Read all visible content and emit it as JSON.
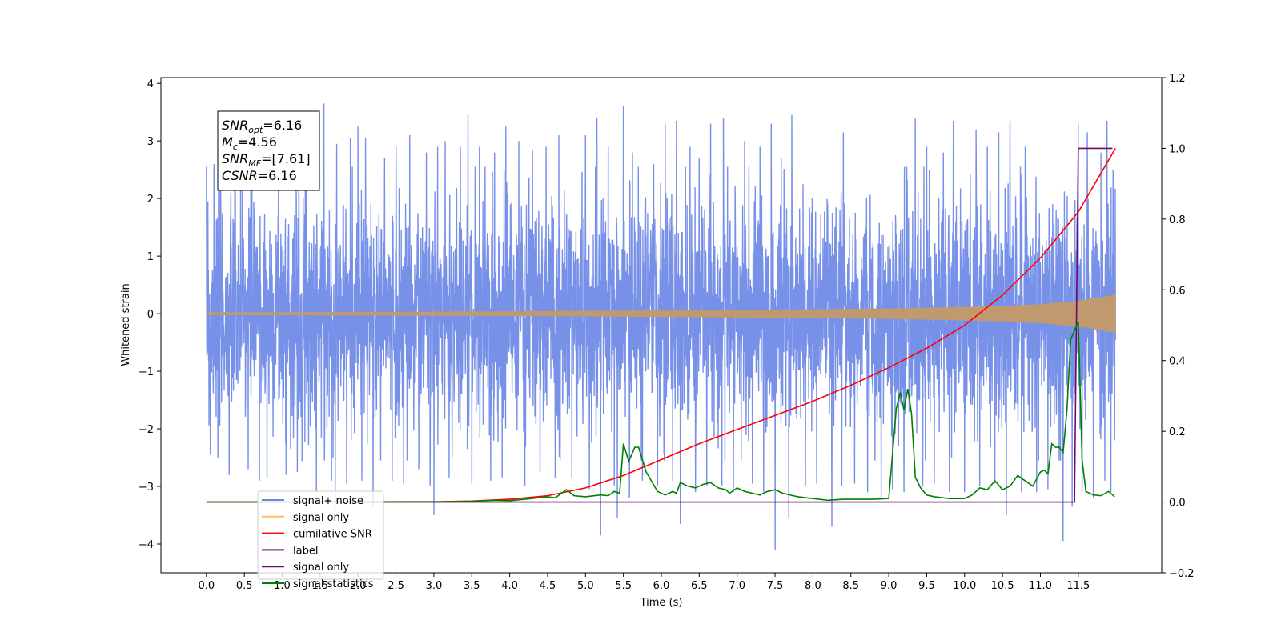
{
  "chart_data": {
    "type": "line",
    "xlabel": "Time (s)",
    "ylabel": "Whitened strain",
    "xlim": [
      -0.6,
      12.6
    ],
    "ylim": [
      -4.5,
      4.1
    ],
    "y2lim": [
      -0.2,
      1.2
    ],
    "x_ticks": [
      "0.0",
      "0.5",
      "1.0",
      "1.5",
      "2.0",
      "2.5",
      "3.0",
      "3.5",
      "4.0",
      "4.5",
      "5.0",
      "5.5",
      "6.0",
      "6.5",
      "7.0",
      "7.5",
      "8.0",
      "8.5",
      "9.0",
      "9.5",
      "10.0",
      "10.5",
      "11.0",
      "11.5"
    ],
    "y_ticks": [
      "4",
      "3",
      "2",
      "1",
      "0",
      "−1",
      "−2",
      "−3",
      "−4"
    ],
    "y2_ticks": [
      "1.2",
      "1.0",
      "0.8",
      "0.6",
      "0.4",
      "0.2",
      "0.0",
      "−0.2"
    ],
    "legend_location": "lower-left",
    "series": [
      {
        "name": "signal+ noise",
        "axis": "left",
        "color": "#6b87e6",
        "noise_sigma": 0.95,
        "x_range": [
          0.0,
          11.99
        ],
        "spikes": [
          [
            0.02,
            1.95
          ],
          [
            0.1,
            2.6
          ],
          [
            0.18,
            2.9
          ],
          [
            0.38,
            3.05
          ],
          [
            0.45,
            2.7
          ],
          [
            0.6,
            2.9
          ],
          [
            0.7,
            3.2
          ],
          [
            0.95,
            3.35
          ],
          [
            1.05,
            3.3
          ],
          [
            1.22,
            2.95
          ],
          [
            1.32,
            3.25
          ],
          [
            1.55,
            3.65
          ],
          [
            1.72,
            2.95
          ],
          [
            1.9,
            3.05
          ],
          [
            2.0,
            3.25
          ],
          [
            2.1,
            3.05
          ],
          [
            2.35,
            2.7
          ],
          [
            2.5,
            2.9
          ],
          [
            2.68,
            3.1
          ],
          [
            2.9,
            2.8
          ],
          [
            3.05,
            2.9
          ],
          [
            3.15,
            3.0
          ],
          [
            3.35,
            2.9
          ],
          [
            3.45,
            3.45
          ],
          [
            3.6,
            2.9
          ],
          [
            3.8,
            2.8
          ],
          [
            3.95,
            3.25
          ],
          [
            4.12,
            3.0
          ],
          [
            4.3,
            2.85
          ],
          [
            4.48,
            2.9
          ],
          [
            4.65,
            3.1
          ],
          [
            4.82,
            2.9
          ],
          [
            5.0,
            3.1
          ],
          [
            5.15,
            3.4
          ],
          [
            5.3,
            2.9
          ],
          [
            5.5,
            3.6
          ],
          [
            5.62,
            2.8
          ],
          [
            5.75,
            3.7
          ],
          [
            5.9,
            2.6
          ],
          [
            6.05,
            3.3
          ],
          [
            6.2,
            3.35
          ],
          [
            6.38,
            2.9
          ],
          [
            6.5,
            2.7
          ],
          [
            6.65,
            3.3
          ],
          [
            6.82,
            3.4
          ],
          [
            6.95,
            2.75
          ],
          [
            7.1,
            3.0
          ],
          [
            7.3,
            2.9
          ],
          [
            7.45,
            3.3
          ],
          [
            7.58,
            2.7
          ],
          [
            7.72,
            3.45
          ],
          [
            7.9,
            2.8
          ],
          [
            8.05,
            3.45
          ],
          [
            8.25,
            2.9
          ],
          [
            8.4,
            3.15
          ],
          [
            8.55,
            2.8
          ],
          [
            8.72,
            3.15
          ],
          [
            8.9,
            2.8
          ],
          [
            9.05,
            3.4
          ],
          [
            9.2,
            2.8
          ],
          [
            9.35,
            3.4
          ],
          [
            9.5,
            2.9
          ],
          [
            9.6,
            3.3
          ],
          [
            9.72,
            2.8
          ],
          [
            9.85,
            3.35
          ],
          [
            10.0,
            2.8
          ],
          [
            10.15,
            3.2
          ],
          [
            10.3,
            2.9
          ],
          [
            10.45,
            3.15
          ],
          [
            10.6,
            3.35
          ],
          [
            10.8,
            2.9
          ],
          [
            10.95,
            3.25
          ],
          [
            11.1,
            3.2
          ],
          [
            11.3,
            2.85
          ],
          [
            11.5,
            3.3
          ],
          [
            11.62,
            3.15
          ],
          [
            11.8,
            2.8
          ],
          [
            11.88,
            3.35
          ],
          [
            11.96,
            2.5
          ],
          [
            0.05,
            -2.45
          ],
          [
            0.15,
            -2.5
          ],
          [
            0.3,
            -2.8
          ],
          [
            0.55,
            -2.7
          ],
          [
            0.7,
            -2.9
          ],
          [
            0.8,
            -2.85
          ],
          [
            1.05,
            -2.8
          ],
          [
            1.2,
            -2.75
          ],
          [
            1.45,
            -3.1
          ],
          [
            1.65,
            -2.9
          ],
          [
            1.7,
            -3.4
          ],
          [
            1.85,
            -2.95
          ],
          [
            2.05,
            -2.9
          ],
          [
            2.2,
            -3.35
          ],
          [
            2.45,
            -2.9
          ],
          [
            2.6,
            -2.95
          ],
          [
            2.8,
            -2.7
          ],
          [
            2.95,
            -3.0
          ],
          [
            3.0,
            -3.5
          ],
          [
            3.2,
            -2.85
          ],
          [
            3.5,
            -2.95
          ],
          [
            3.75,
            -2.9
          ],
          [
            3.9,
            -2.85
          ],
          [
            4.2,
            -3.0
          ],
          [
            4.4,
            -2.75
          ],
          [
            4.6,
            -2.85
          ],
          [
            4.82,
            -2.85
          ],
          [
            5.05,
            -3.05
          ],
          [
            5.2,
            -3.85
          ],
          [
            5.38,
            -3.0
          ],
          [
            5.42,
            -3.55
          ],
          [
            5.58,
            -3.2
          ],
          [
            5.75,
            -2.9
          ],
          [
            5.95,
            -3.0
          ],
          [
            6.15,
            -2.9
          ],
          [
            6.25,
            -3.65
          ],
          [
            6.45,
            -3.1
          ],
          [
            6.6,
            -3.0
          ],
          [
            6.8,
            -3.0
          ],
          [
            6.95,
            -3.1
          ],
          [
            7.2,
            -2.95
          ],
          [
            7.35,
            -3.1
          ],
          [
            7.5,
            -4.1
          ],
          [
            7.68,
            -3.55
          ],
          [
            7.9,
            -3.0
          ],
          [
            8.05,
            -2.95
          ],
          [
            8.25,
            -3.7
          ],
          [
            8.38,
            -3.0
          ],
          [
            8.55,
            -2.95
          ],
          [
            8.72,
            -3.1
          ],
          [
            8.9,
            -3.2
          ],
          [
            9.05,
            -3.05
          ],
          [
            9.2,
            -3.1
          ],
          [
            9.45,
            -3.0
          ],
          [
            9.6,
            -2.95
          ],
          [
            9.8,
            -3.1
          ],
          [
            10.0,
            -3.1
          ],
          [
            10.2,
            -3.0
          ],
          [
            10.4,
            -2.95
          ],
          [
            10.55,
            -3.5
          ],
          [
            10.75,
            -3.1
          ],
          [
            10.95,
            -3.1
          ],
          [
            11.1,
            -3.05
          ],
          [
            11.3,
            -3.95
          ],
          [
            11.42,
            -3.35
          ],
          [
            11.55,
            -3.1
          ],
          [
            11.7,
            -3.2
          ],
          [
            11.85,
            -2.9
          ],
          [
            11.93,
            -3.1
          ],
          [
            11.98,
            -2.2
          ]
        ]
      },
      {
        "name": "signal only",
        "axis": "left",
        "color": "#c09a6e",
        "envelope": [
          [
            0.0,
            0.02
          ],
          [
            2.0,
            0.025
          ],
          [
            4.0,
            0.035
          ],
          [
            6.0,
            0.05
          ],
          [
            8.0,
            0.07
          ],
          [
            9.0,
            0.085
          ],
          [
            10.0,
            0.11
          ],
          [
            10.5,
            0.13
          ],
          [
            11.0,
            0.16
          ],
          [
            11.5,
            0.22
          ],
          [
            11.8,
            0.28
          ],
          [
            11.99,
            0.33
          ]
        ],
        "x_range": [
          0.0,
          11.99
        ]
      },
      {
        "name": "cumilative SNR",
        "axis": "right",
        "color": "#ff0000",
        "x": [
          0.0,
          3.0,
          3.5,
          4.0,
          4.5,
          5.0,
          5.5,
          6.0,
          6.5,
          7.0,
          7.5,
          8.0,
          8.5,
          9.0,
          9.5,
          10.0,
          10.5,
          11.0,
          11.5,
          11.99
        ],
        "values": [
          0.0,
          0.001,
          0.003,
          0.008,
          0.018,
          0.04,
          0.075,
          0.12,
          0.165,
          0.205,
          0.245,
          0.285,
          0.33,
          0.38,
          0.435,
          0.5,
          0.585,
          0.69,
          0.82,
          1.0
        ]
      },
      {
        "name": "label",
        "axis": "right",
        "color": "#6b0a6b",
        "x": [
          0.0,
          11.25,
          11.45,
          11.5,
          11.95
        ],
        "values": [
          0.0,
          0.0,
          0.0,
          1.0,
          1.0
        ]
      },
      {
        "name": "signal statistics",
        "axis": "right",
        "color": "#008000",
        "x": [
          0.0,
          0.5,
          1.0,
          1.5,
          2.0,
          2.5,
          3.0,
          3.5,
          3.8,
          4.0,
          4.2,
          4.5,
          4.6,
          4.75,
          4.85,
          5.0,
          5.2,
          5.3,
          5.38,
          5.45,
          5.5,
          5.57,
          5.65,
          5.7,
          5.8,
          5.95,
          6.05,
          6.15,
          6.2,
          6.25,
          6.35,
          6.45,
          6.55,
          6.65,
          6.75,
          6.85,
          6.9,
          7.0,
          7.1,
          7.2,
          7.3,
          7.4,
          7.5,
          7.6,
          7.7,
          7.8,
          8.0,
          8.2,
          8.4,
          8.6,
          8.8,
          9.0,
          9.1,
          9.15,
          9.2,
          9.25,
          9.3,
          9.35,
          9.42,
          9.5,
          9.6,
          9.8,
          10.0,
          10.1,
          10.2,
          10.3,
          10.4,
          10.5,
          10.6,
          10.7,
          10.8,
          10.9,
          11.0,
          11.05,
          11.1,
          11.15,
          11.2,
          11.25,
          11.3,
          11.35,
          11.4,
          11.5,
          11.55,
          11.6,
          11.7,
          11.8,
          11.9,
          11.98
        ],
        "values": [
          0.0,
          0.0,
          0.0,
          0.0,
          0.0,
          0.0,
          0.0,
          0.002,
          0.005,
          0.004,
          0.008,
          0.015,
          0.012,
          0.035,
          0.018,
          0.015,
          0.02,
          0.018,
          0.03,
          0.025,
          0.165,
          0.115,
          0.155,
          0.155,
          0.085,
          0.03,
          0.02,
          0.03,
          0.025,
          0.055,
          0.045,
          0.04,
          0.05,
          0.055,
          0.04,
          0.035,
          0.025,
          0.04,
          0.03,
          0.025,
          0.02,
          0.03,
          0.035,
          0.025,
          0.02,
          0.015,
          0.01,
          0.005,
          0.008,
          0.008,
          0.008,
          0.01,
          0.265,
          0.31,
          0.26,
          0.32,
          0.25,
          0.07,
          0.04,
          0.02,
          0.015,
          0.01,
          0.01,
          0.02,
          0.04,
          0.035,
          0.06,
          0.035,
          0.045,
          0.075,
          0.06,
          0.045,
          0.085,
          0.09,
          0.08,
          0.165,
          0.155,
          0.155,
          0.14,
          0.26,
          0.46,
          0.51,
          0.12,
          0.03,
          0.02,
          0.018,
          0.03,
          0.015
        ]
      },
      {
        "name": "signal only",
        "axis": "right",
        "legend_only": true,
        "color": "#6b0a6b",
        "x": [],
        "values": []
      }
    ],
    "legend": [
      {
        "label": "signal+ noise",
        "color": "#6b87e6"
      },
      {
        "label": "signal only",
        "color": "#ffbe5c"
      },
      {
        "label": "cumilative SNR",
        "color": "#ff0000"
      },
      {
        "label": "label",
        "color": "#6b0a6b"
      },
      {
        "label": "signal only",
        "color": "#6b0a6b"
      },
      {
        "label": "signal statistics",
        "color": "#008000"
      }
    ],
    "annotation": [
      {
        "var": "SNR",
        "sub": "opt",
        "value": "=6.16"
      },
      {
        "var": "M",
        "sub": "c",
        "value": "=4.56"
      },
      {
        "var": "SNR",
        "sub": "MF",
        "value": "=[7.61]"
      },
      {
        "var": "CSNR",
        "sub": "",
        "value": "=6.16"
      }
    ]
  }
}
